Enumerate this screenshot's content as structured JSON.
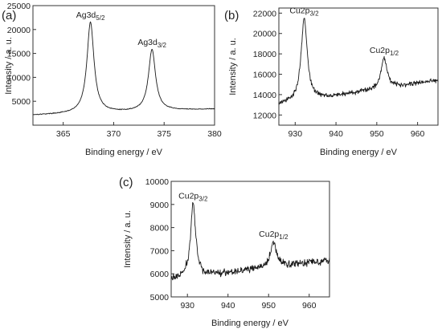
{
  "chart_data": [
    {
      "type": "line",
      "panel_label": "(a)",
      "xlabel": "Binding energy / eV",
      "ylabel": "Intensity / a. u.",
      "xlim": [
        362,
        380
      ],
      "ylim": [
        0,
        25000
      ],
      "xticks": [
        365,
        370,
        375,
        380
      ],
      "yticks": [
        5000,
        10000,
        15000,
        20000,
        25000
      ],
      "grid": false,
      "baseline": 2100,
      "baseline_slope": 70,
      "noise": 60,
      "peaks": [
        {
          "label": "Ag3d",
          "subscript": "5/2",
          "center": 367.7,
          "height": 21500,
          "width": 0.42
        },
        {
          "label": "Ag3d",
          "subscript": "3/2",
          "center": 373.8,
          "height": 15800,
          "width": 0.42
        }
      ]
    },
    {
      "type": "line",
      "panel_label": "(b)",
      "xlabel": "Binding energy / eV",
      "ylabel": "Intensity / a. u.",
      "xlim": [
        926,
        965
      ],
      "ylim": [
        11000,
        22500
      ],
      "xticks": [
        930,
        940,
        950,
        960
      ],
      "yticks": [
        12000,
        14000,
        16000,
        18000,
        20000,
        22000
      ],
      "grid": false,
      "baseline": 13000,
      "baseline_slope": 62,
      "noise": 160,
      "peaks": [
        {
          "label": "Cu2p",
          "subscript": "3/2",
          "center": 932.2,
          "height": 21500,
          "width": 0.9
        },
        {
          "label": "Cu2p",
          "subscript": "1/2",
          "center": 951.8,
          "height": 17600,
          "width": 0.9
        }
      ]
    },
    {
      "type": "line",
      "panel_label": "(c)",
      "xlabel": "Binding energy / eV",
      "ylabel": "Intensity / a. u.",
      "xlim": [
        926,
        965
      ],
      "ylim": [
        5000,
        10000
      ],
      "xticks": [
        930,
        940,
        950,
        960
      ],
      "yticks": [
        5000,
        6000,
        7000,
        8000,
        9000,
        10000
      ],
      "grid": false,
      "baseline": 5750,
      "baseline_slope": 22,
      "noise": 110,
      "peaks": [
        {
          "label": "Cu2p",
          "subscript": "3/2",
          "center": 931.4,
          "height": 9050,
          "width": 0.75
        },
        {
          "label": "Cu2p",
          "subscript": "1/2",
          "center": 951.2,
          "height": 7400,
          "width": 0.8
        }
      ]
    }
  ]
}
